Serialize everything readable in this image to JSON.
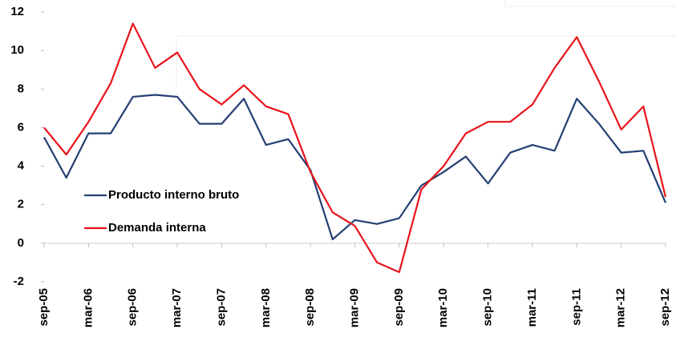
{
  "chart_data": {
    "type": "line",
    "categories": [
      "sep-05",
      null,
      "mar-06",
      null,
      "sep-06",
      null,
      "mar-07",
      null,
      "sep-07",
      null,
      "mar-08",
      null,
      "sep-08",
      null,
      "mar-09",
      null,
      "sep-09",
      null,
      "mar-10",
      null,
      "sep-10",
      null,
      "mar-11",
      null,
      "sep-11",
      null,
      "mar-12",
      null,
      "sep-12"
    ],
    "series": [
      {
        "name": "Producto interno bruto",
        "color": "#243f73",
        "values": [
          5.5,
          3.4,
          5.7,
          5.7,
          7.6,
          7.7,
          7.6,
          6.2,
          6.2,
          7.5,
          5.1,
          5.4,
          3.8,
          0.2,
          1.2,
          1.0,
          1.3,
          3.0,
          3.7,
          4.5,
          3.1,
          4.7,
          5.1,
          4.8,
          7.5,
          6.2,
          4.7,
          4.8,
          2.1
        ]
      },
      {
        "name": "Demanda interna",
        "color": "#e8141b",
        "values": [
          6.0,
          4.6,
          6.3,
          8.3,
          11.4,
          9.1,
          9.9,
          8.0,
          7.2,
          8.2,
          7.1,
          6.7,
          3.7,
          1.6,
          0.9,
          -1.0,
          -1.5,
          2.8,
          4.0,
          5.7,
          6.3,
          6.3,
          7.2,
          9.1,
          10.7,
          8.4,
          5.9,
          7.1,
          2.4
        ]
      }
    ],
    "ylim": [
      -2,
      12
    ],
    "yticks": [
      -2,
      0,
      2,
      4,
      6,
      8,
      10,
      12
    ],
    "legend": "left"
  }
}
